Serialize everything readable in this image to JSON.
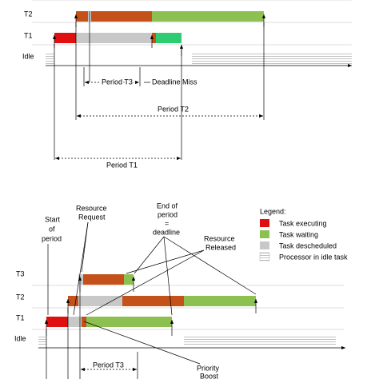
{
  "top": {
    "rows": [
      "T2",
      "T1",
      "Idle"
    ],
    "period_t3": "Period T3",
    "deadline_miss": "Deadline Miss",
    "period_t2": "Period T2",
    "period_t1": "Period T1"
  },
  "bottom": {
    "rows": [
      "T3",
      "T2",
      "T1",
      "Idle"
    ],
    "start": [
      "Start",
      "of",
      "period"
    ],
    "request": [
      "Resource",
      "Request"
    ],
    "end": [
      "End of",
      "period",
      "=",
      "deadline"
    ],
    "released": [
      "Resource",
      "Released"
    ],
    "period_t3": "Period T3",
    "boost": [
      "Priority",
      "Boost"
    ]
  },
  "legend": {
    "title": "Legend:",
    "items": [
      "Task executing",
      "Task waiting",
      "Task descheduled",
      "Processor in idle task"
    ]
  }
}
